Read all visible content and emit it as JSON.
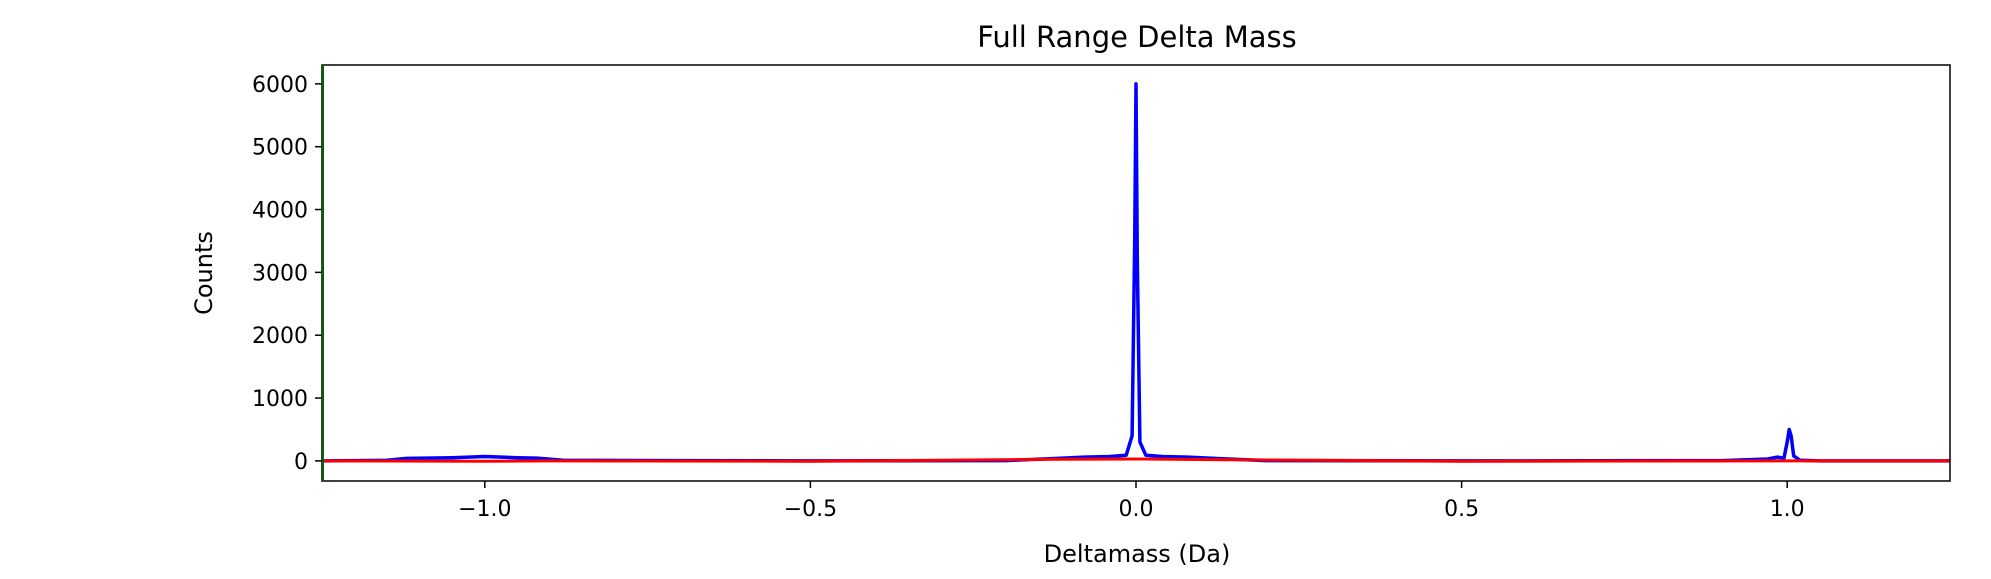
{
  "chart_data": {
    "type": "line",
    "title": "Full Range Delta Mass",
    "xlabel": "Deltamass (Da)",
    "ylabel": "Counts",
    "xlim": [
      -1.25,
      1.25
    ],
    "ylim": [
      -320,
      6300
    ],
    "xticks": [
      -1.0,
      -0.5,
      0.0,
      0.5,
      1.0
    ],
    "xtick_labels": [
      "−1.0",
      "−0.5",
      "0.0",
      "0.5",
      "1.0"
    ],
    "yticks": [
      0,
      1000,
      2000,
      3000,
      4000,
      5000,
      6000
    ],
    "ytick_labels": [
      "0",
      "1000",
      "2000",
      "3000",
      "4000",
      "5000",
      "6000"
    ],
    "grid": false,
    "legend": "none",
    "series": [
      {
        "color": "#0000ff",
        "x": [
          -1.25,
          -1.15,
          -1.12,
          -1.05,
          -1.0,
          -0.95,
          -0.92,
          -0.88,
          -0.5,
          -0.2,
          -0.12,
          -0.08,
          -0.04,
          -0.015,
          -0.006,
          -0.002,
          0.0,
          0.002,
          0.006,
          0.015,
          0.04,
          0.08,
          0.12,
          0.2,
          0.5,
          0.9,
          0.97,
          0.985,
          0.995,
          1.0,
          1.003,
          1.006,
          1.01,
          1.02,
          1.05,
          1.25
        ],
        "y": [
          0,
          10,
          40,
          50,
          70,
          50,
          45,
          10,
          0,
          5,
          40,
          60,
          70,
          90,
          400,
          3500,
          6000,
          3200,
          300,
          90,
          70,
          60,
          40,
          5,
          0,
          5,
          30,
          60,
          40,
          300,
          500,
          400,
          80,
          10,
          0,
          0
        ]
      },
      {
        "color": "#ff0000",
        "x": [
          -1.25,
          -1.0,
          -0.9,
          -0.5,
          -0.12,
          0.0,
          0.12,
          0.5,
          1.0,
          1.25
        ],
        "y": [
          0,
          -5,
          0,
          -5,
          25,
          30,
          20,
          -5,
          0,
          0
        ]
      }
    ]
  }
}
